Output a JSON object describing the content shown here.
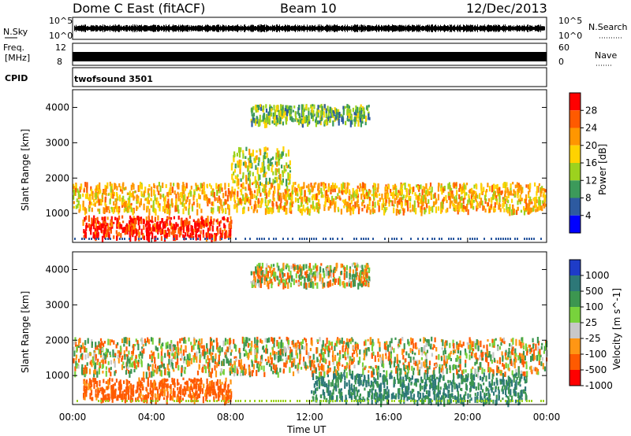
{
  "header": {
    "station": "Dome C East (fitACF)",
    "beam": "Beam 10",
    "date": "12/Dec/2013"
  },
  "strips": {
    "nsky_label": "N.Sky",
    "nsearch_label": "N.Search",
    "freq_label_line1": "Freq.",
    "freq_label_line2": "[MHz]",
    "nave_label": "Nave",
    "cpid_label": "CPID",
    "cpid_value": "twofsound 3501",
    "noise_ticks": [
      "10^5",
      "10^0"
    ],
    "freq_ticks": [
      "12",
      "8"
    ],
    "nave_ticks": [
      "60",
      "0"
    ]
  },
  "colorbars": {
    "power_label": "Power [dB]",
    "power_ticks": [
      "28",
      "24",
      "20",
      "16",
      "12",
      "8",
      "4"
    ],
    "power_colors": [
      "#ff0000",
      "#ff5a00",
      "#ff9600",
      "#ffd200",
      "#9cd21e",
      "#3c9a5a",
      "#2d5aa0",
      "#0000ff"
    ],
    "velocity_label": "Velocity [m s^-1]",
    "velocity_ticks": [
      "1000",
      "500",
      "100",
      "25",
      "-25",
      "-100",
      "-500",
      "-1000"
    ],
    "velocity_colors": [
      "#1e3cc8",
      "#2d7878",
      "#3c9650",
      "#78d23c",
      "#c8c8c8",
      "#ff9614",
      "#ff5a00",
      "#ff0000"
    ]
  },
  "chart_data": {
    "type": "heatmap",
    "xlabel": "Time UT",
    "ylabel": "Slant Range [km]",
    "x_ticks": [
      "00:00",
      "04:00",
      "08:00",
      "12:00",
      "16:00",
      "20:00",
      "00:00"
    ],
    "x_range_hours": [
      0,
      24
    ],
    "y_ticks": [
      1000,
      2000,
      3000,
      4000
    ],
    "y_range_km": [
      180,
      4500
    ],
    "panels": [
      {
        "name": "power",
        "bands": [
          {
            "t0": 0,
            "t1": 24,
            "r0": 1100,
            "r1": 1900,
            "value_db": 18
          },
          {
            "t0": 0.5,
            "t1": 8,
            "r0": 350,
            "r1": 950,
            "value_db": 27
          },
          {
            "t0": 8,
            "t1": 11,
            "r0": 1900,
            "r1": 2900,
            "value_db": 14
          },
          {
            "t0": 9,
            "t1": 15,
            "r0": 3600,
            "r1": 4100,
            "value_db": 10
          }
        ]
      },
      {
        "name": "velocity",
        "bands": [
          {
            "t0": 0,
            "t1": 24,
            "r0": 1100,
            "r1": 2100,
            "value_ms": 0
          },
          {
            "t0": 0.5,
            "t1": 8,
            "r0": 350,
            "r1": 950,
            "value_ms": -150
          },
          {
            "t0": 12,
            "t1": 23,
            "r0": 300,
            "r1": 1100,
            "value_ms": 300
          },
          {
            "t0": 9,
            "t1": 15,
            "r0": 3600,
            "r1": 4200,
            "value_ms": 0
          }
        ]
      }
    ]
  }
}
